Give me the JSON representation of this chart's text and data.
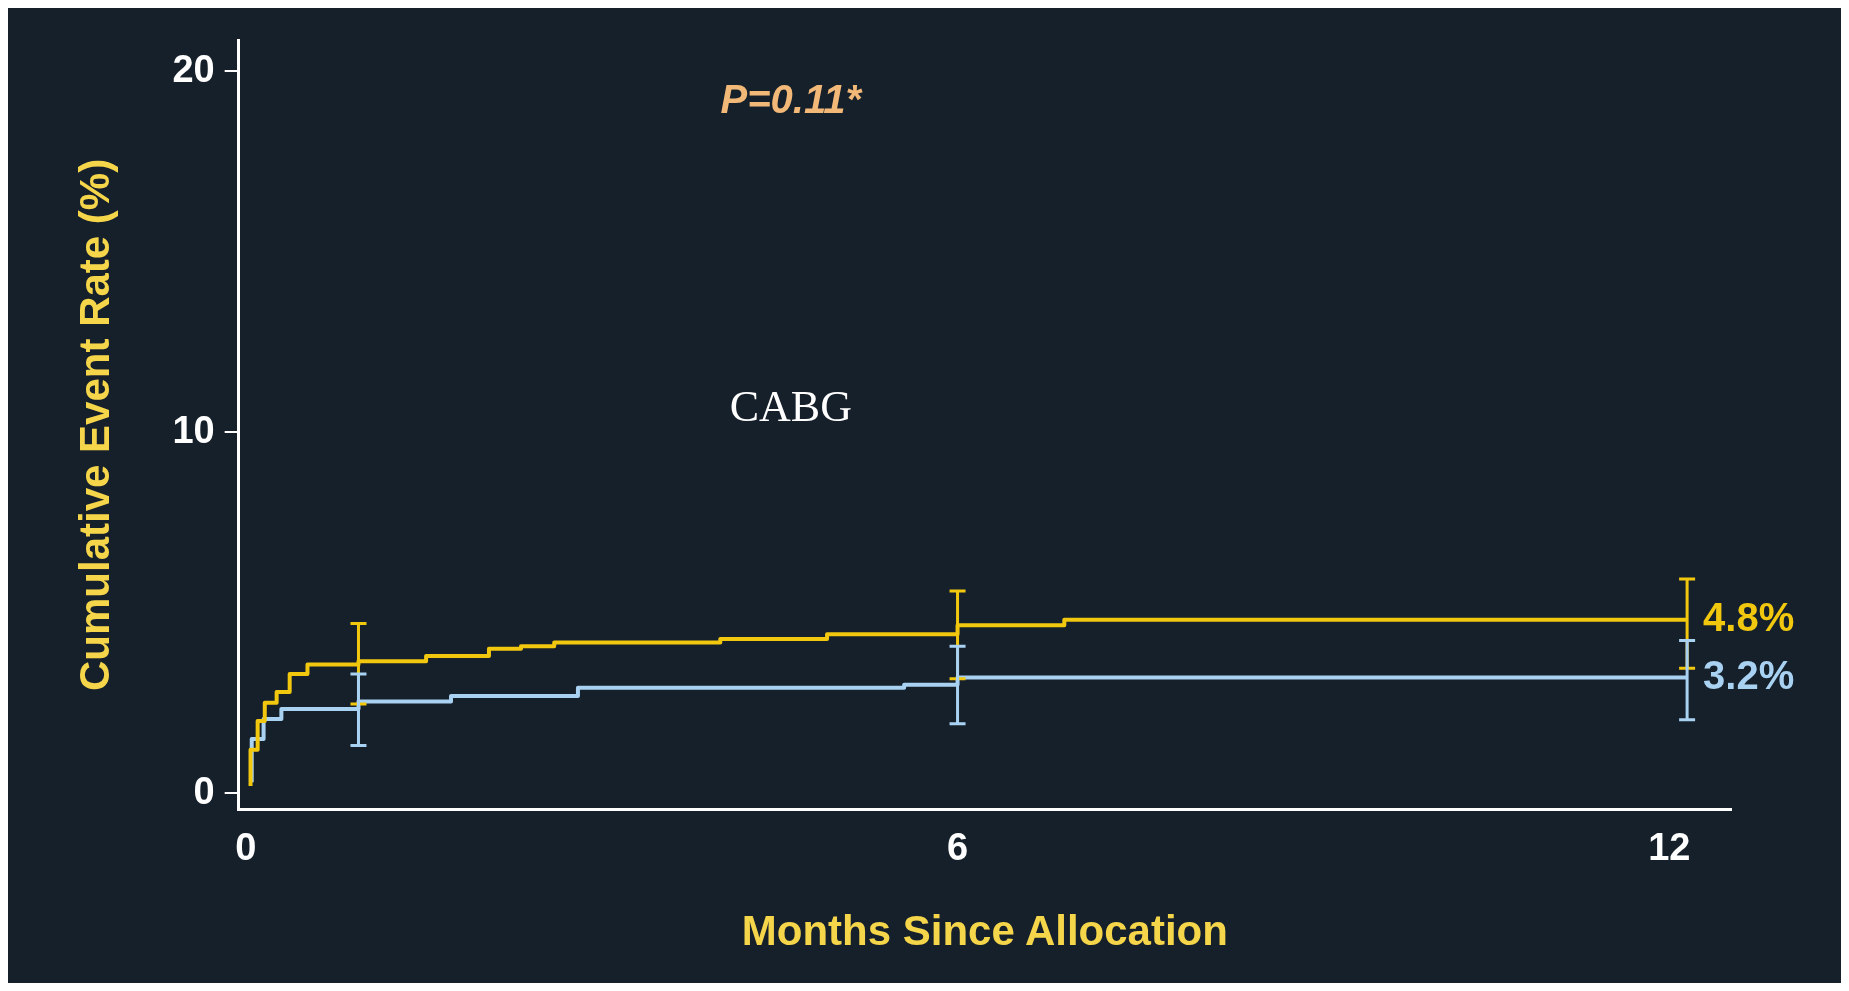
{
  "chart_data": {
    "type": "step",
    "xlabel": "Months Since Allocation",
    "ylabel": "Cumulative Event Rate (%)",
    "xlim": [
      -0.06,
      12.52
    ],
    "ylim": [
      -0.44,
      20.84
    ],
    "xticks": [
      0,
      6,
      12
    ],
    "yticks": [
      0,
      10,
      20
    ],
    "grid": false,
    "legend": false,
    "marker": "none",
    "line_style": "solid",
    "annotations": [
      "P=0.11*",
      "CABG"
    ],
    "series": [
      {
        "color": "#f2c80f",
        "x": [
          0.04,
          0.1,
          0.16,
          0.26,
          0.37,
          0.52,
          0.73,
          0.95,
          1.52,
          2.05,
          2.32,
          2.6,
          4.0,
          4.9,
          5.6,
          6.0,
          6.9,
          9.55,
          12.15
        ],
        "values": [
          0.2,
          1.2,
          2.0,
          2.5,
          2.8,
          3.3,
          3.56,
          3.56,
          3.65,
          3.8,
          4.0,
          4.07,
          4.17,
          4.27,
          4.4,
          4.4,
          4.65,
          4.8,
          4.8
        ],
        "errors": [
          null,
          null,
          null,
          null,
          null,
          null,
          null,
          [
            2.47,
            4.7
          ],
          null,
          null,
          null,
          null,
          null,
          null,
          null,
          [
            3.17,
            5.6
          ],
          null,
          null,
          [
            3.46,
            5.93
          ]
        ],
        "value_labels": [
          null,
          null,
          null,
          null,
          null,
          null,
          null,
          null,
          null,
          null,
          null,
          null,
          null,
          null,
          null,
          null,
          null,
          null,
          "4.8%"
        ]
      },
      {
        "color": "#a9d2f2",
        "x": [
          0.05,
          0.15,
          0.3,
          0.8,
          0.95,
          1.73,
          2.1,
          2.8,
          5.55,
          6.0,
          9.7,
          12.15
        ],
        "values": [
          0.3,
          1.5,
          2.05,
          2.33,
          2.33,
          2.54,
          2.69,
          2.69,
          2.92,
          3.0,
          3.2,
          3.2
        ],
        "errors": [
          null,
          null,
          null,
          null,
          [
            1.32,
            3.3
          ],
          null,
          null,
          null,
          null,
          [
            1.92,
            4.07
          ],
          null,
          [
            2.03,
            4.23
          ]
        ],
        "value_labels": [
          null,
          null,
          null,
          null,
          null,
          null,
          null,
          null,
          null,
          null,
          null,
          "3.2%"
        ]
      }
    ]
  }
}
